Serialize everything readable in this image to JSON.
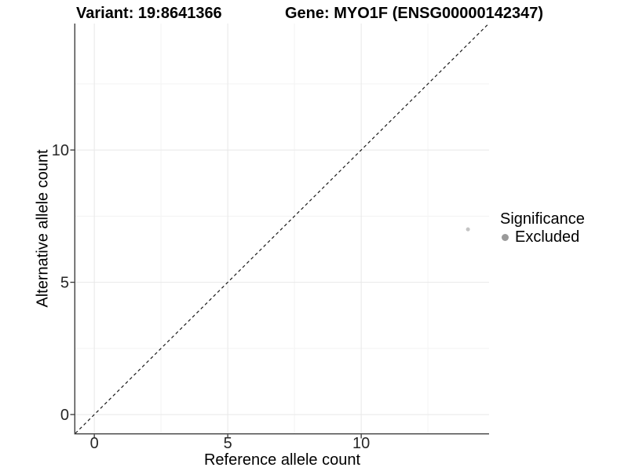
{
  "figure": {
    "title_left": "Variant: 19:8641366",
    "title_right": "Gene: MYO1F (ENSG00000142347)"
  },
  "chart_data": {
    "type": "scatter",
    "title_left": "Variant: 19:8641366",
    "title_right": "Gene: MYO1F (ENSG00000142347)",
    "xlabel": "Reference allele count",
    "ylabel": "Alternative allele count",
    "xlim": [
      -0.71,
      14.79
    ],
    "ylim": [
      -0.71,
      14.78
    ],
    "x_ticks": [
      0,
      5,
      10
    ],
    "y_ticks": [
      0,
      5,
      10
    ],
    "x_minor_ticks": [
      2.5,
      7.5,
      12.5
    ],
    "y_minor_ticks": [
      2.5,
      7.5,
      12.5
    ],
    "grid": "on",
    "legend_position": "right",
    "identity_line": {
      "slope": 1,
      "intercept": 0,
      "linetype": "dashed",
      "color": "#1a1a1a"
    },
    "series": [
      {
        "name": "Excluded",
        "color": "#c4c4c4",
        "point_radius": 2.5,
        "points": [
          {
            "x": 14,
            "y": 7
          }
        ]
      }
    ],
    "legend": {
      "title": "Significance",
      "items": [
        {
          "label": "Excluded",
          "color": "#9a9a9a"
        }
      ]
    },
    "colors": {
      "background": "#ffffff",
      "axis_line": "#404040",
      "tick_mark": "#333333",
      "tick_label": "#262626",
      "grid_major": "#e8e8e8",
      "grid_minor": "#f3f3f3"
    }
  }
}
